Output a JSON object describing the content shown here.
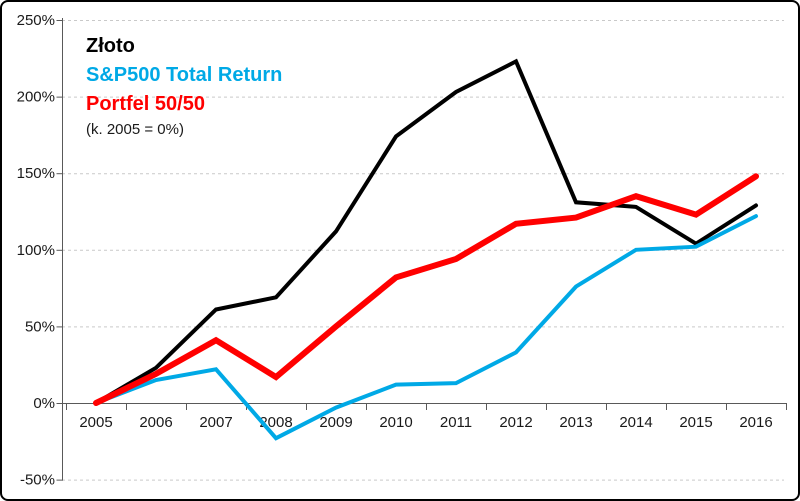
{
  "chart_data": {
    "type": "line",
    "title": "",
    "legend_note": "(k. 2005 = 0%)",
    "x_labels": [
      "2005",
      "2006",
      "2007",
      "2008",
      "2009",
      "2010",
      "2011",
      "2012",
      "2013",
      "2014",
      "2015",
      "2016"
    ],
    "series": [
      {
        "name": "Złoto",
        "color": "#000000",
        "stroke_width": 4,
        "values": [
          0,
          23,
          61,
          69,
          112,
          174,
          203,
          223,
          131,
          128,
          104,
          129
        ]
      },
      {
        "name": "S&P500 Total Return",
        "color": "#00A9E6",
        "stroke_width": 4,
        "values": [
          0,
          15,
          22,
          -23,
          -3,
          12,
          13,
          33,
          76,
          100,
          102,
          122
        ]
      },
      {
        "name": "Portfel 50/50",
        "color": "#FF0000",
        "stroke_width": 6,
        "values": [
          0,
          19,
          41,
          17,
          50,
          82,
          94,
          117,
          121,
          135,
          123,
          148
        ]
      }
    ],
    "y_axis": {
      "min": -50,
      "max": 250,
      "step": 50,
      "unit": "%",
      "tick_labels": [
        "250%",
        "200%",
        "150%",
        "100%",
        "50%",
        "0%",
        "-50%"
      ],
      "tick_values": [
        250,
        200,
        150,
        100,
        50,
        0,
        -50
      ]
    },
    "grid": "horizontal-dashed",
    "legend_position": "top-left-inside",
    "axis_color": "#595959",
    "gridline_color": "#c9c9c9",
    "label_color": "#1a1a1a"
  }
}
